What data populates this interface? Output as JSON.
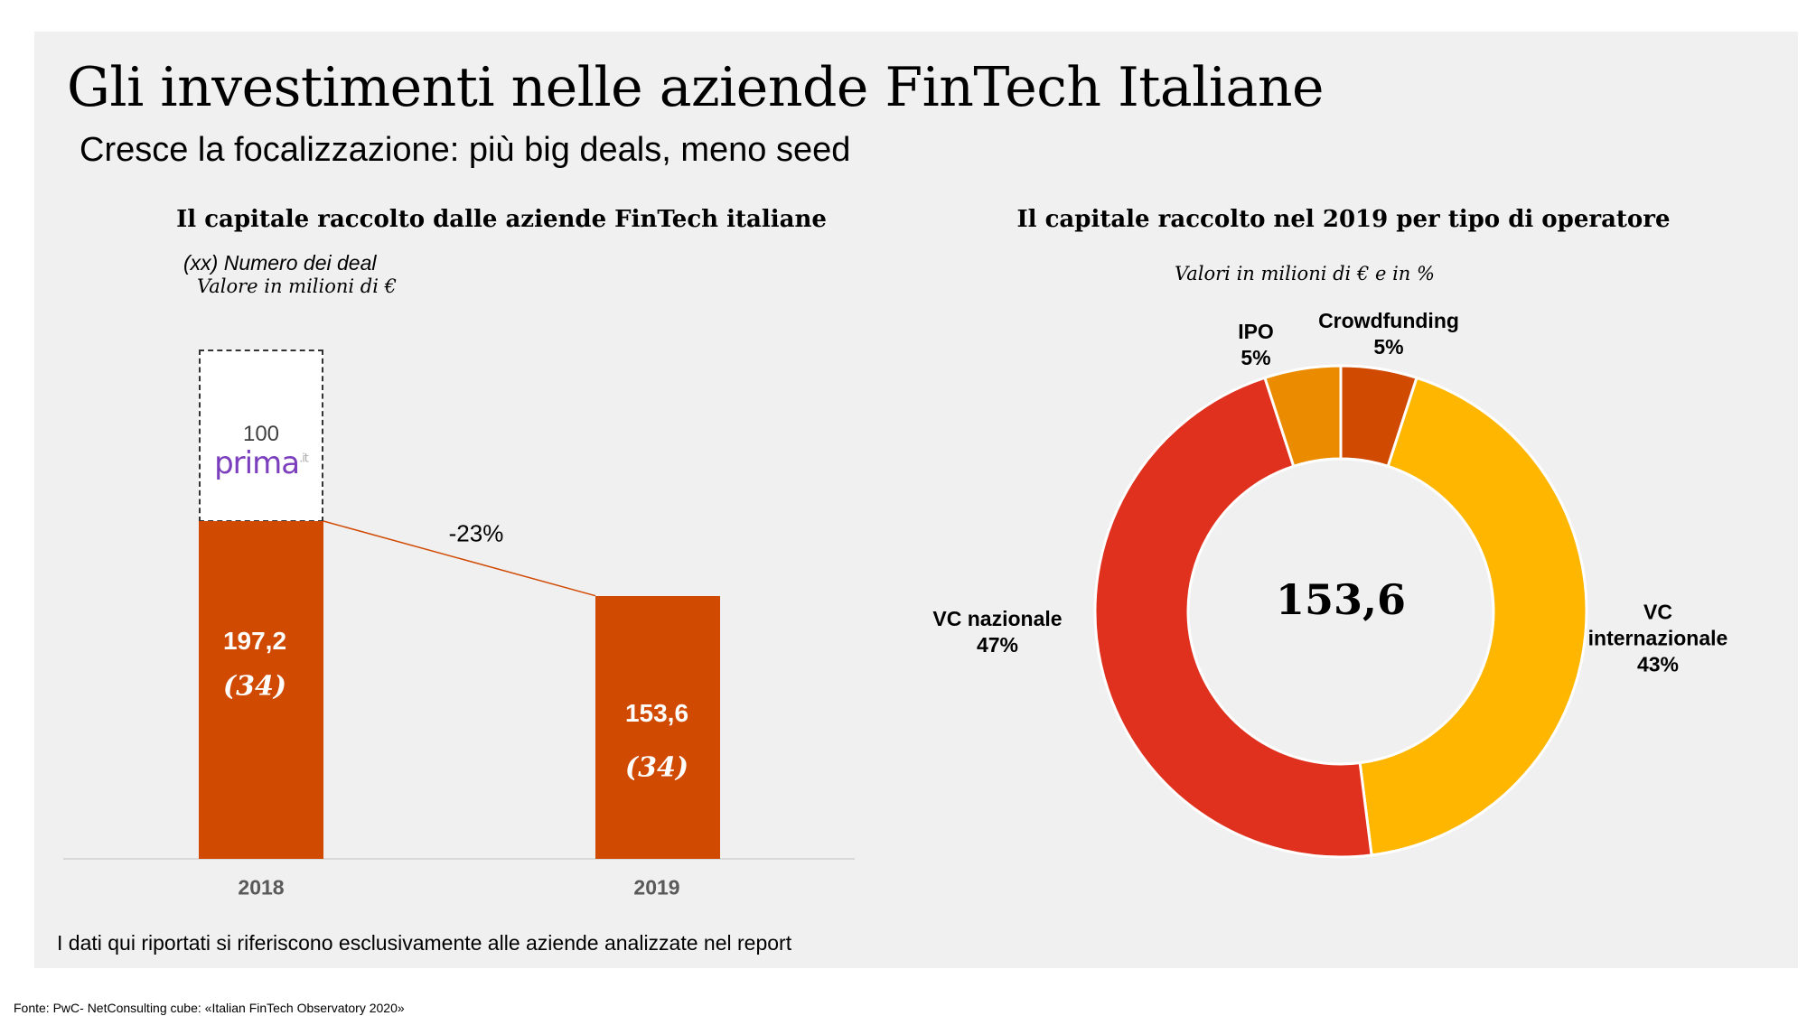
{
  "title": "Gli investimenti nelle aziende FinTech Italiane",
  "subtitle": "Cresce la focalizzazione: più big deals, meno seed",
  "footnote": "I dati qui riportati si riferiscono esclusivamente alle aziende analizzate nel report",
  "source": "Fonte: PwC- NetConsulting cube: «Italian FinTech Observatory 2020»",
  "chart_data": [
    {
      "type": "bar",
      "title": "Il capitale raccolto dalle aziende FinTech italiane",
      "notes": [
        "(xx) Numero dei deal",
        "Valore in milioni di €"
      ],
      "categories": [
        "2018",
        "2019"
      ],
      "values": [
        197.2,
        153.6
      ],
      "value_labels": [
        "197,2",
        "153,6"
      ],
      "deals": [
        "(34)",
        "(34)"
      ],
      "extra": {
        "category": "2018",
        "value": 100,
        "label": "100",
        "logo": "prima.it"
      },
      "change_label": "-23%",
      "colors": {
        "bar": "#d04a02",
        "extra_fill": "#ffffff"
      }
    },
    {
      "type": "pie",
      "title": "Il capitale raccolto nel 2019 per tipo di operatore",
      "subtitle": "Valori in milioni di € e in %",
      "center_label": "153,6",
      "slices": [
        {
          "name": "Crowdfunding",
          "value": 5,
          "label": "5%",
          "color": "#d04a02"
        },
        {
          "name": "VC internazionale",
          "value": 43,
          "label": "43%",
          "color": "#ffb600"
        },
        {
          "name": "VC nazionale",
          "value": 47,
          "label": "47%",
          "color": "#e0301e"
        },
        {
          "name": "IPO",
          "value": 5,
          "label": "5%",
          "color": "#eb8c00"
        }
      ]
    }
  ]
}
